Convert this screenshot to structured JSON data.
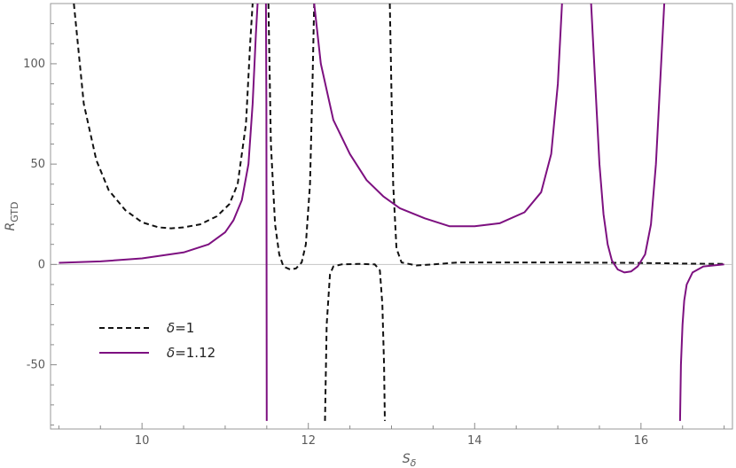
{
  "chart_data": {
    "type": "line",
    "title": "",
    "xlabel": "S",
    "xlabel_sub": "δ",
    "ylabel": "R",
    "ylabel_sub": "GTD",
    "xlim": [
      8.9,
      17.1
    ],
    "ylim": [
      -82,
      130
    ],
    "xticks": [
      10,
      12,
      14,
      16
    ],
    "yticks": [
      -50,
      0,
      50,
      100
    ],
    "grid": false,
    "legend_position": "lower-left",
    "series": [
      {
        "name": "δ=1",
        "legend_symbol": "δ",
        "legend_value": "=1",
        "color": "#111111",
        "style": "dashed",
        "segments": [
          [
            [
              9.18,
              130
            ],
            [
              9.3,
              80
            ],
            [
              9.45,
              52
            ],
            [
              9.6,
              37
            ],
            [
              9.8,
              27
            ],
            [
              10.0,
              21
            ],
            [
              10.2,
              18.5
            ],
            [
              10.35,
              18
            ],
            [
              10.5,
              18.5
            ],
            [
              10.7,
              20
            ],
            [
              10.9,
              24
            ],
            [
              11.05,
              30
            ],
            [
              11.15,
              40
            ],
            [
              11.25,
              70
            ],
            [
              11.3,
              110
            ],
            [
              11.33,
              130
            ]
          ],
          [
            [
              11.52,
              130
            ],
            [
              11.55,
              60
            ],
            [
              11.6,
              20
            ],
            [
              11.65,
              5
            ],
            [
              11.7,
              -1
            ],
            [
              11.78,
              -2.5
            ],
            [
              11.85,
              -2
            ],
            [
              11.92,
              1
            ],
            [
              11.97,
              10
            ],
            [
              12.02,
              40
            ],
            [
              12.05,
              90
            ],
            [
              12.07,
              130
            ]
          ],
          [
            [
              12.2,
              -78
            ],
            [
              12.22,
              -30
            ],
            [
              12.26,
              -5
            ],
            [
              12.3,
              -1
            ],
            [
              12.4,
              0
            ],
            [
              12.6,
              0.3
            ],
            [
              12.8,
              0
            ],
            [
              12.86,
              -3
            ],
            [
              12.89,
              -20
            ],
            [
              12.91,
              -50
            ],
            [
              12.92,
              -78
            ]
          ],
          [
            [
              12.98,
              130
            ],
            [
              13.02,
              40
            ],
            [
              13.06,
              8
            ],
            [
              13.12,
              1
            ],
            [
              13.3,
              -0.5
            ],
            [
              13.5,
              0
            ],
            [
              13.8,
              1
            ],
            [
              14.3,
              1
            ],
            [
              15.0,
              1
            ],
            [
              15.8,
              0.8
            ],
            [
              16.3,
              0.6
            ],
            [
              16.5,
              0.4
            ],
            [
              17.0,
              0.3
            ]
          ]
        ]
      },
      {
        "name": "δ=1.12",
        "legend_symbol": "δ",
        "legend_value": "=1.12",
        "color": "#7d1080",
        "style": "solid",
        "segments": [
          [
            [
              9.0,
              0.8
            ],
            [
              9.5,
              1.5
            ],
            [
              10.0,
              3
            ],
            [
              10.5,
              6
            ],
            [
              10.8,
              10
            ],
            [
              11.0,
              16
            ],
            [
              11.1,
              22
            ],
            [
              11.2,
              32
            ],
            [
              11.28,
              50
            ],
            [
              11.33,
              80
            ],
            [
              11.37,
              115
            ],
            [
              11.39,
              130
            ]
          ],
          [
            [
              11.49,
              130
            ],
            [
              11.495,
              80
            ],
            [
              11.5,
              -78
            ]
          ],
          [
            [
              12.07,
              130
            ],
            [
              12.15,
              100
            ],
            [
              12.3,
              72
            ],
            [
              12.5,
              55
            ],
            [
              12.7,
              42
            ],
            [
              12.9,
              34
            ],
            [
              13.1,
              28
            ],
            [
              13.4,
              23
            ],
            [
              13.7,
              19
            ],
            [
              14.0,
              19
            ],
            [
              14.3,
              20.5
            ],
            [
              14.6,
              26
            ],
            [
              14.8,
              36
            ],
            [
              14.92,
              55
            ],
            [
              15.0,
              90
            ],
            [
              15.05,
              130
            ]
          ],
          [
            [
              15.4,
              130
            ],
            [
              15.45,
              90
            ],
            [
              15.5,
              50
            ],
            [
              15.55,
              25
            ],
            [
              15.6,
              10
            ],
            [
              15.65,
              2
            ],
            [
              15.72,
              -2.5
            ],
            [
              15.8,
              -4
            ],
            [
              15.88,
              -3.5
            ],
            [
              15.96,
              -1
            ],
            [
              16.05,
              5
            ],
            [
              16.12,
              20
            ],
            [
              16.18,
              50
            ],
            [
              16.23,
              90
            ],
            [
              16.28,
              130
            ]
          ],
          [
            [
              16.47,
              -78
            ],
            [
              16.48,
              -50
            ],
            [
              16.5,
              -30
            ],
            [
              16.52,
              -18
            ],
            [
              16.55,
              -10
            ],
            [
              16.62,
              -4
            ],
            [
              16.75,
              -1
            ],
            [
              17.0,
              0
            ]
          ]
        ]
      }
    ]
  }
}
